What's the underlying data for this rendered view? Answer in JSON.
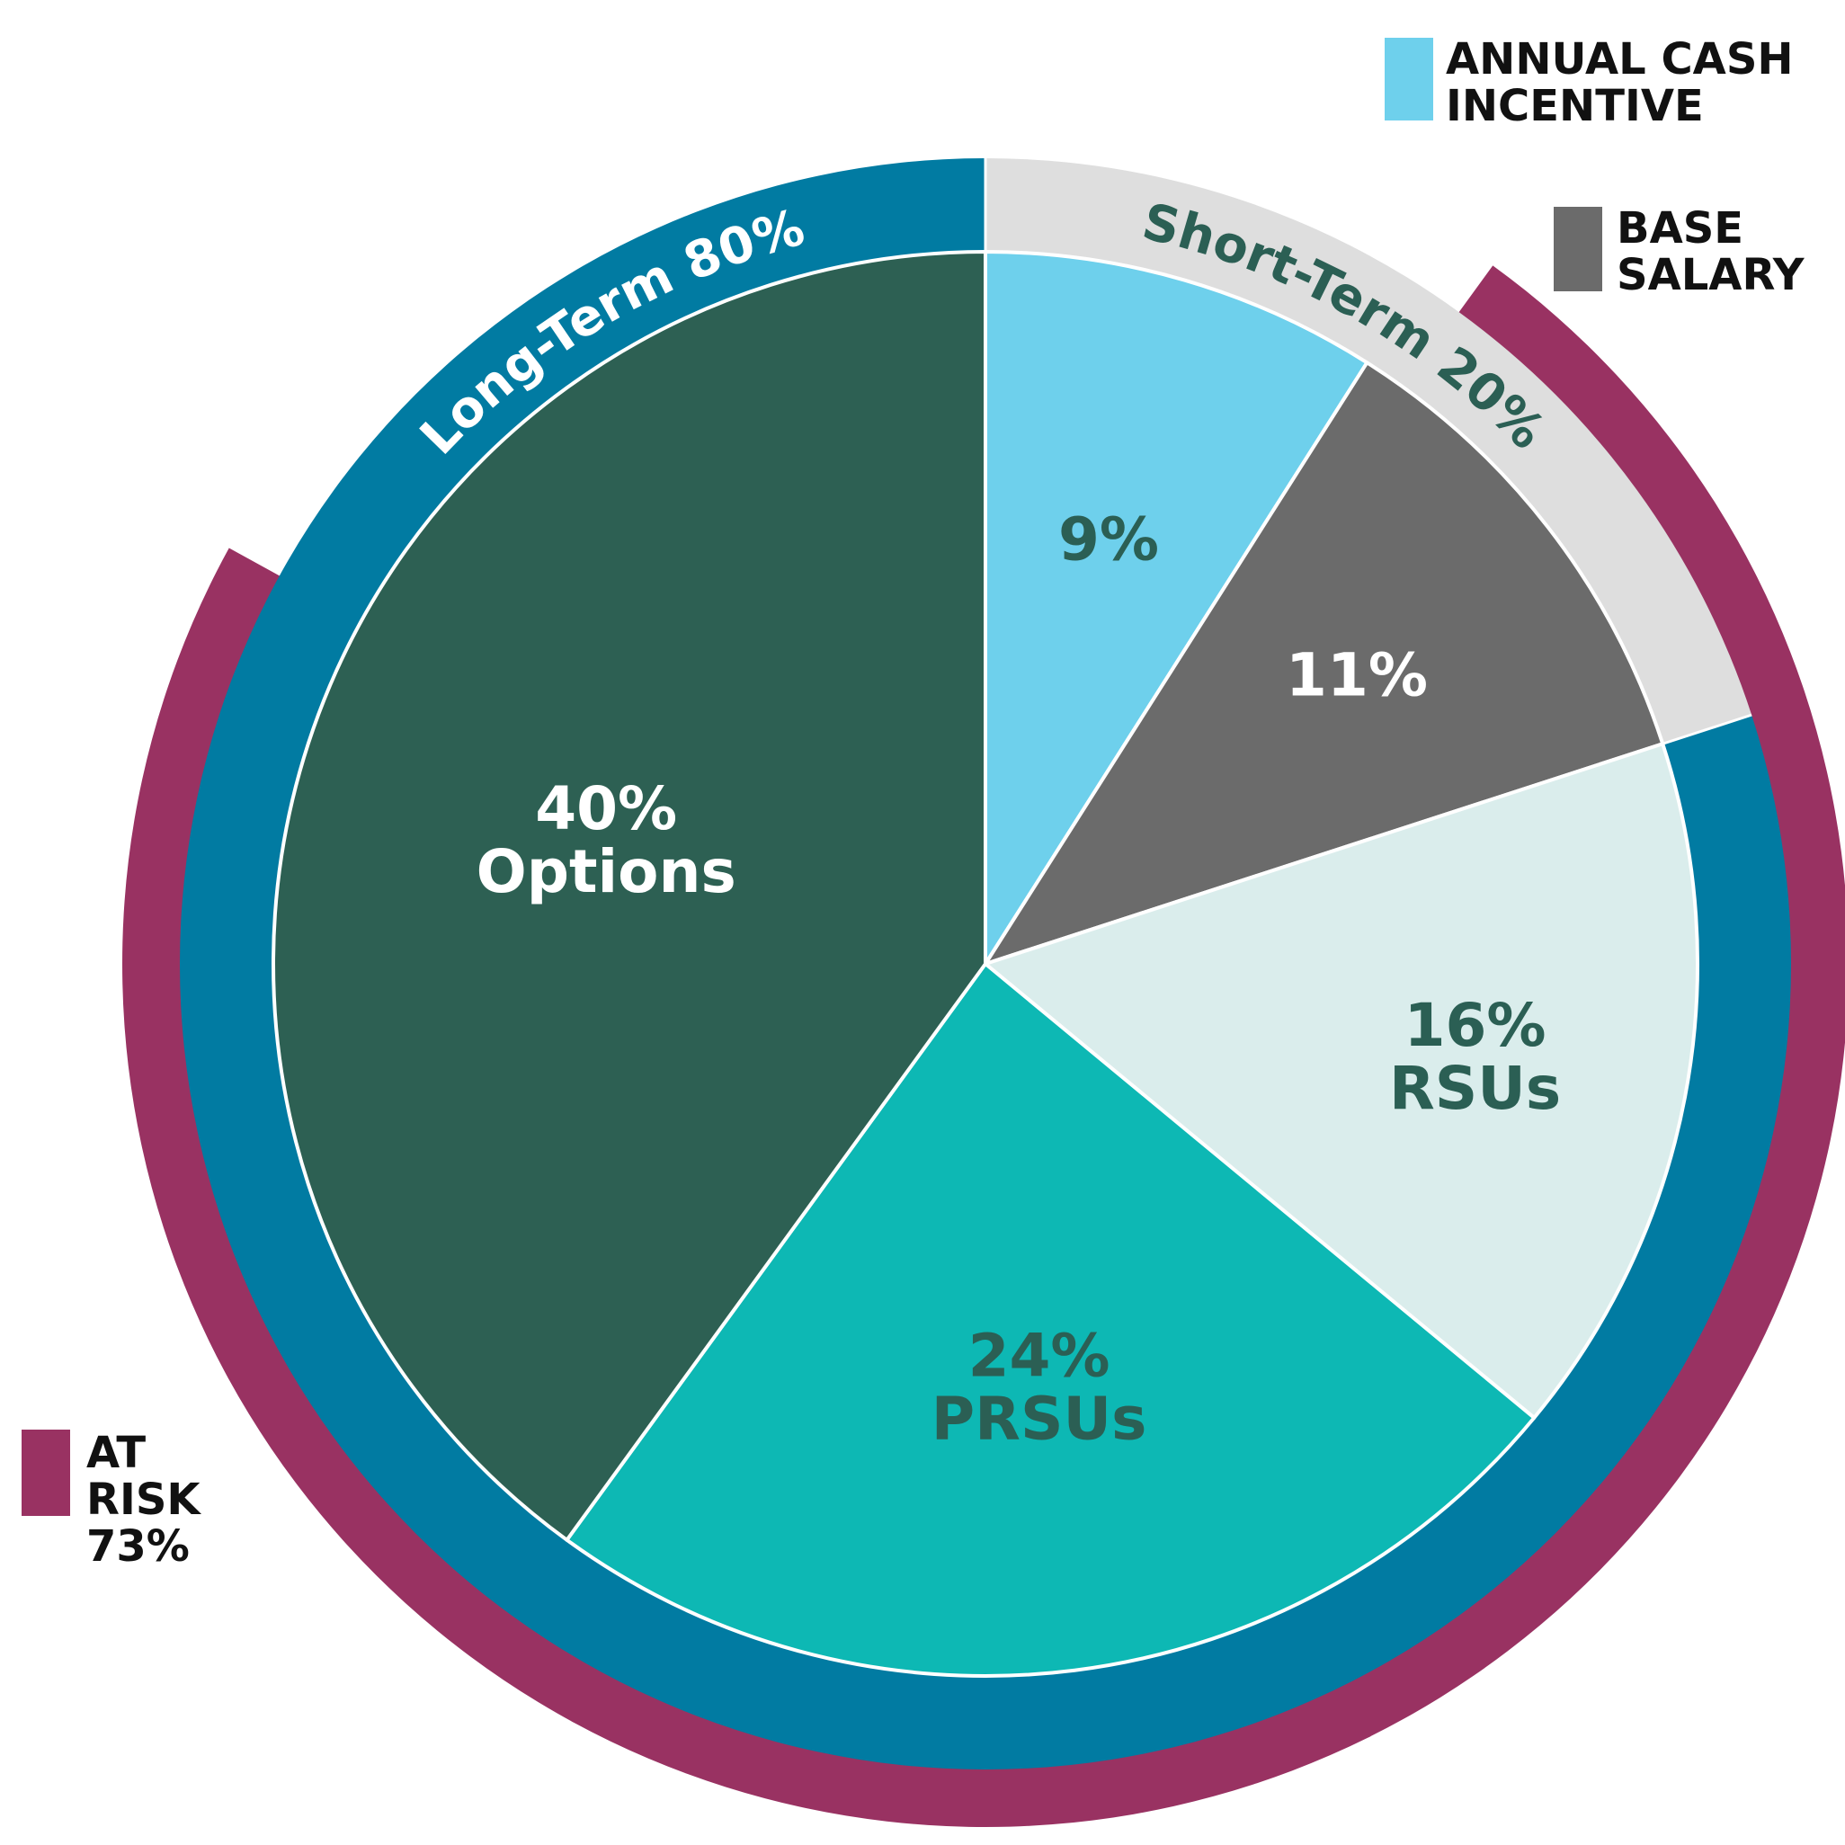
{
  "chart_data": {
    "type": "pie",
    "slices": [
      {
        "pct_label": "9%",
        "name_label": "",
        "value": 9,
        "color": "#6ED0EC",
        "text_color": "#2B5F54"
      },
      {
        "pct_label": "11%",
        "name_label": "",
        "value": 11,
        "color": "#6B6B6B",
        "text_color": "#FFFFFF"
      },
      {
        "pct_label": "16%",
        "name_label": "RSUs",
        "value": 16,
        "color": "#DAEDEC",
        "text_color": "#2B5F54"
      },
      {
        "pct_label": "24%",
        "name_label": "PRSUs",
        "value": 24,
        "color": "#0DB8B4",
        "text_color": "#2B5F54"
      },
      {
        "pct_label": "40%",
        "name_label": "Options",
        "value": 40,
        "color": "#2D6053",
        "text_color": "#FFFFFF"
      }
    ],
    "term_ring": [
      {
        "label": "Short-Term 20%",
        "value": 20,
        "color": "#DEDEDE",
        "text_color": "#2B5F54"
      },
      {
        "label": "Long-Term 80%",
        "value": 80,
        "color": "#017BA2",
        "text_color": "#FFFFFF"
      }
    ],
    "at_risk_ring": {
      "value": 73,
      "color": "#993262"
    },
    "legend": [
      {
        "lines": [
          "ANNUAL CASH",
          "INCENTIVE"
        ],
        "color": "#6ED0EC"
      },
      {
        "lines": [
          "BASE",
          "SALARY"
        ],
        "color": "#6B6B6B"
      },
      {
        "lines": [
          "AT",
          "RISK",
          "73%"
        ],
        "color": "#993262"
      }
    ]
  }
}
